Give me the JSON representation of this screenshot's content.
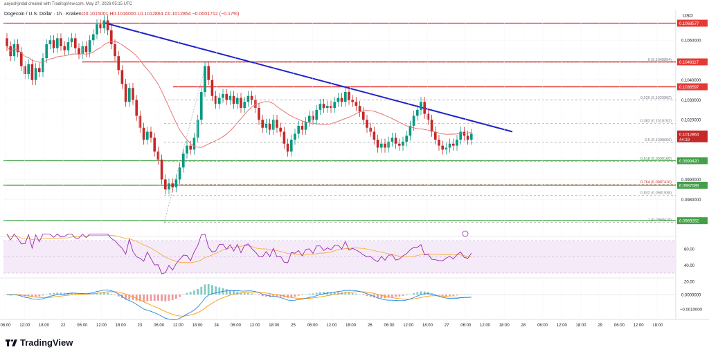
{
  "header": {
    "credit": "aayushjindal created with TradingView.com, May 27, 2026 05:15 UTC",
    "symbol": "Dogecoin / U.S. Dollar · 1h · Kraken",
    "ohlc": "O0.1015001 H0.1016000 L0.1012864 C0.1012864 −0.0001712 (−0.17%)",
    "currency": "USD"
  },
  "brand": {
    "name": "TradingView",
    "logo_icon": "tradingview-logo-icon"
  },
  "colors": {
    "up": "#089981",
    "down": "#c62828",
    "trend": "#1e22c9",
    "resistance": "#e53935",
    "support": "#43a047",
    "ma": "#e57373",
    "rsi": "#9c27b0",
    "rsi_ma": "#f9a825",
    "macd": "#1e88e5",
    "signal": "#ff9800"
  },
  "chart_data": [
    {
      "type": "candlestick",
      "name": "price",
      "x_ticks": [
        "06:00",
        "12:00",
        "18:00",
        "22",
        "06:00",
        "12:00",
        "18:00",
        "23",
        "06:00",
        "12:00",
        "18:00",
        "24",
        "06:00",
        "12:00",
        "18:00",
        "25",
        "06:00",
        "12:00",
        "18:00",
        "26",
        "06:00",
        "12:00",
        "18:00",
        "27",
        "06:00",
        "12:00",
        "18:00",
        "28",
        "06:00",
        "12:00",
        "18:00",
        "29",
        "06:00",
        "12:00",
        "18:00"
      ],
      "y_ticks": [
        0.106,
        0.104,
        0.103,
        0.102,
        0.099,
        0.098
      ],
      "price_labels": [
        {
          "text": "0.1068577",
          "kind": "resistance"
        },
        {
          "text": "0.1049117",
          "kind": "resistance"
        },
        {
          "text": "0.1036597",
          "kind": "resistance"
        },
        {
          "text": "0.1012864",
          "kind": "current",
          "countdown": "44:19"
        },
        {
          "text": "0.0999420",
          "kind": "support"
        },
        {
          "text": "0.0987089",
          "kind": "support"
        },
        {
          "text": "0.0969262",
          "kind": "support"
        }
      ],
      "fibonacci": [
        {
          "label": "0 (0.1048894)",
          "value": 0.1048894
        },
        {
          "label": "0.236 (0.1029902)",
          "value": 0.1029902
        },
        {
          "label": "0.382 (0.1018152)",
          "value": 0.1018152
        },
        {
          "label": "0.5 (0.1008656)",
          "value": 0.1008656
        },
        {
          "label": "0.618 (0.0999160)",
          "value": 0.099916
        },
        {
          "label": "0.764 (0.0987410)",
          "value": 0.098741
        },
        {
          "label": "0.832 (0.0981938)",
          "value": 0.0981938
        },
        {
          "label": "1 (0.0968418)",
          "value": 0.0968418
        }
      ],
      "horizontal_lines": [
        {
          "value": 0.1068577,
          "kind": "resistance"
        },
        {
          "value": 0.1049117,
          "kind": "resistance"
        },
        {
          "value": 0.1036597,
          "kind": "resistance"
        },
        {
          "value": 0.099942,
          "kind": "support"
        },
        {
          "value": 0.0987089,
          "kind": "support"
        },
        {
          "value": 0.0969262,
          "kind": "support"
        }
      ],
      "trend_line": {
        "start": 0.10688,
        "end": 0.1014
      },
      "candles_close": [
        0.1057,
        0.1052,
        0.1058,
        0.1054,
        0.1047,
        0.1043,
        0.1048,
        0.104,
        0.1046,
        0.1044,
        0.1051,
        0.1058,
        0.106,
        0.1056,
        0.1061,
        0.1057,
        0.1055,
        0.1059,
        0.1061,
        0.1056,
        0.1053,
        0.1057,
        0.1054,
        0.106,
        0.1063,
        0.1068,
        0.1066,
        0.107,
        0.1065,
        0.1058,
        0.1052,
        0.1045,
        0.1038,
        0.1029,
        0.1036,
        0.103,
        0.1022,
        0.1016,
        0.101,
        0.1014,
        0.1011,
        0.1004,
        0.1,
        0.099,
        0.0985,
        0.0988,
        0.0986,
        0.099,
        0.0996,
        0.1003,
        0.1007,
        0.1005,
        0.1011,
        0.102,
        0.1034,
        0.1047,
        0.104,
        0.1032,
        0.1028,
        0.1031,
        0.1033,
        0.103,
        0.1032,
        0.1028,
        0.1031,
        0.1026,
        0.1029,
        0.1032,
        0.103,
        0.1026,
        0.102,
        0.1016,
        0.1018,
        0.1015,
        0.102,
        0.1016,
        0.1014,
        0.1008,
        0.1004,
        0.101,
        0.1013,
        0.1017,
        0.1015,
        0.1019,
        0.1022,
        0.102,
        0.1025,
        0.1028,
        0.1026,
        0.1027,
        0.1026,
        0.1029,
        0.1031,
        0.1029,
        0.1034,
        0.103,
        0.1029,
        0.1027,
        0.1024,
        0.102,
        0.1016,
        0.1014,
        0.101,
        0.1006,
        0.1008,
        0.1006,
        0.1009,
        0.1011,
        0.1008,
        0.1007,
        0.1009,
        0.1012,
        0.1017,
        0.1022,
        0.1025,
        0.1029,
        0.1023,
        0.102,
        0.1014,
        0.101,
        0.1007,
        0.1005,
        0.1006,
        0.1008,
        0.1007,
        0.101,
        0.1014,
        0.1012,
        0.101,
        0.1013
      ]
    },
    {
      "type": "line",
      "name": "rsi",
      "y_ticks": [
        60,
        40,
        20
      ],
      "levels": [
        70,
        50,
        30
      ]
    },
    {
      "type": "bar",
      "name": "macd",
      "y_ticks": [
        "0.0000000",
        "−0.0010000"
      ]
    }
  ]
}
